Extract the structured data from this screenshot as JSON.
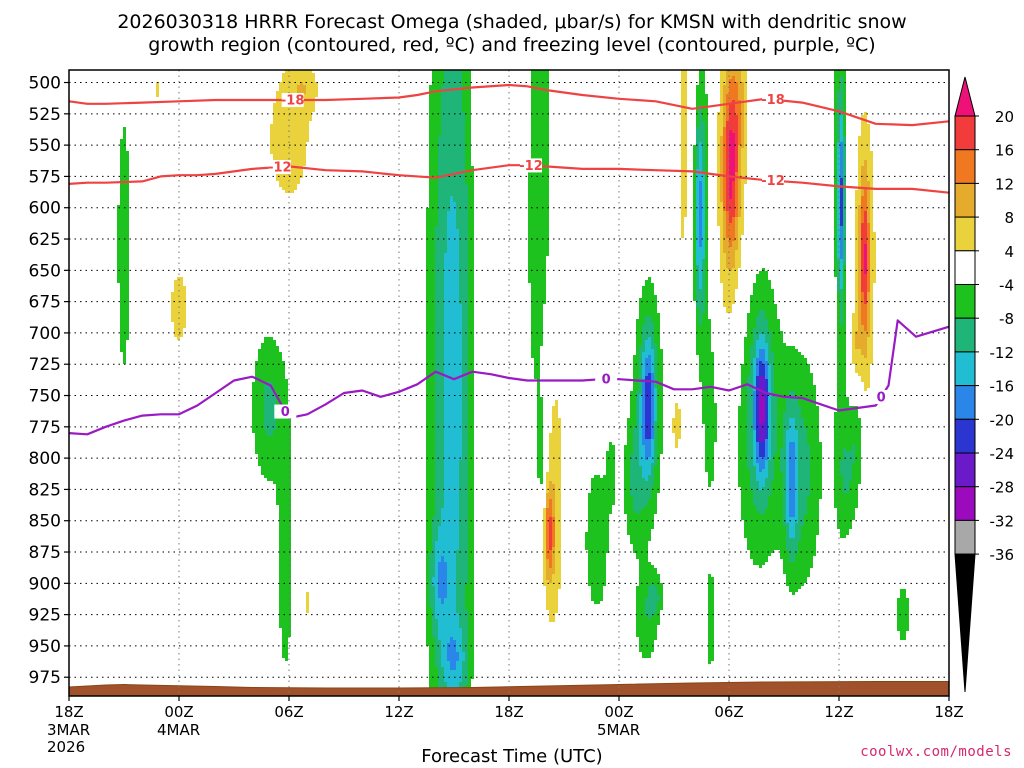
{
  "chart_data": {
    "type": "heatmap",
    "title_line1": "2026030318 HRRR Forecast Omega (shaded, μbar/s) for KMSN with dendritic snow",
    "title_line2": "growth region (contoured, red, ºC) and freezing level (contoured, purple, ºC)",
    "xlabel": "Forecast Time (UTC)",
    "credit": "coolwx.com/models",
    "x_range_hours": [
      0,
      48
    ],
    "x_ticks": [
      {
        "h": 0,
        "label": "18Z",
        "sub": [
          "3MAR",
          "2026"
        ]
      },
      {
        "h": 6,
        "label": "00Z",
        "sub": [
          "4MAR"
        ]
      },
      {
        "h": 12,
        "label": "06Z",
        "sub": []
      },
      {
        "h": 18,
        "label": "12Z",
        "sub": []
      },
      {
        "h": 24,
        "label": "18Z",
        "sub": []
      },
      {
        "h": 30,
        "label": "00Z",
        "sub": [
          "5MAR"
        ]
      },
      {
        "h": 36,
        "label": "06Z",
        "sub": []
      },
      {
        "h": 42,
        "label": "12Z",
        "sub": []
      },
      {
        "h": 48,
        "label": "18Z",
        "sub": []
      }
    ],
    "y_range_mb": [
      490,
      990
    ],
    "y_ticks": [
      500,
      525,
      550,
      575,
      600,
      625,
      650,
      675,
      700,
      725,
      750,
      775,
      800,
      825,
      850,
      875,
      900,
      925,
      950,
      975
    ],
    "colorbar": {
      "levels": [
        -36,
        -32,
        -28,
        -24,
        -20,
        -16,
        -12,
        -8,
        -4,
        4,
        8,
        12,
        16,
        20
      ],
      "labels": [
        "20",
        "16",
        "12",
        "8",
        "4",
        "-4",
        "-8",
        "-12",
        "-16",
        "-20",
        "-24",
        "-28",
        "-32",
        "-36"
      ],
      "colors_top_to_bottom": [
        "#ee1177",
        "#f23c3c",
        "#f07820",
        "#e5ab2c",
        "#e9d23c",
        "#ffffff",
        "#1ec21e",
        "#1fb578",
        "#21bdd2",
        "#2a86e8",
        "#2b35cf",
        "#6a1ac9",
        "#9b0bbd",
        "#a8a8a8",
        "#000000"
      ]
    },
    "omega_features": [
      {
        "t": 3.0,
        "p": 630,
        "dt": 0.3,
        "dp": 90,
        "v": -7
      },
      {
        "t": 6.0,
        "p": 680,
        "dt": 0.45,
        "dp": 28,
        "v": 6
      },
      {
        "t": 4.8,
        "p": 505,
        "dt": 0.08,
        "dp": 10,
        "v": 5
      },
      {
        "t": 10.9,
        "p": 760,
        "dt": 0.7,
        "dp": 45,
        "v": -9
      },
      {
        "t": 11.8,
        "p": 880,
        "dt": 0.3,
        "dp": 70,
        "v": -8
      },
      {
        "t": 12.0,
        "p": 545,
        "dt": 1.1,
        "dp": 48,
        "v": 6
      },
      {
        "t": 12.8,
        "p": 503,
        "dt": 0.6,
        "dp": 15,
        "v": 5
      },
      {
        "t": 13.0,
        "p": 915,
        "dt": 0.08,
        "dp": 12,
        "v": 5
      },
      {
        "t": 14.4,
        "p": 905,
        "dt": 0.06,
        "dp": 8,
        "v": -6
      },
      {
        "t": 15.4,
        "p": 935,
        "dt": 0.08,
        "dp": 14,
        "v": 5
      },
      {
        "t": 20.9,
        "p": 740,
        "dt": 0.9,
        "dp": 270,
        "v": -14
      },
      {
        "t": 21.0,
        "p": 960,
        "dt": 0.5,
        "dp": 20,
        "v": -7
      },
      {
        "t": 20.2,
        "p": 900,
        "dt": 0.4,
        "dp": 30,
        "v": -8
      },
      {
        "t": 22.4,
        "p": 745,
        "dt": 0.25,
        "dp": 240,
        "v": 6
      },
      {
        "t": 25.7,
        "p": 660,
        "dt": 0.55,
        "dp": 200,
        "v": -8
      },
      {
        "t": 25.8,
        "p": 805,
        "dt": 0.2,
        "dp": 40,
        "v": -6
      },
      {
        "t": 26.2,
        "p": 825,
        "dt": 0.6,
        "dp": 110,
        "v": 9
      },
      {
        "t": 26.2,
        "p": 860,
        "dt": 0.2,
        "dp": 25,
        "v": 13
      },
      {
        "t": 28.8,
        "p": 865,
        "dt": 0.55,
        "dp": 50,
        "v": -7
      },
      {
        "t": 29.6,
        "p": 810,
        "dt": 0.2,
        "dp": 20,
        "v": -6
      },
      {
        "t": 31.5,
        "p": 930,
        "dt": 0.5,
        "dp": 28,
        "v": -7
      },
      {
        "t": 32.0,
        "p": 910,
        "dt": 0.3,
        "dp": 12,
        "v": -6
      },
      {
        "t": 31.6,
        "p": 755,
        "dt": 0.55,
        "dp": 68,
        "v": -11
      },
      {
        "t": 31.6,
        "p": 758,
        "dt": 0.25,
        "dp": 35,
        "v": -13
      },
      {
        "t": 30.8,
        "p": 820,
        "dt": 0.45,
        "dp": 40,
        "v": -7
      },
      {
        "t": 33.1,
        "p": 775,
        "dt": 0.2,
        "dp": 20,
        "v": 5
      },
      {
        "t": 33.5,
        "p": 575,
        "dt": 0.35,
        "dp": 150,
        "v": 5
      },
      {
        "t": 34.0,
        "p": 565,
        "dt": 0.32,
        "dp": 135,
        "v": 5
      },
      {
        "t": 34.4,
        "p": 600,
        "dt": 0.55,
        "dp": 110,
        "v": -8
      },
      {
        "t": 34.4,
        "p": 605,
        "dt": 0.22,
        "dp": 60,
        "v": -12
      },
      {
        "t": 35.0,
        "p": 930,
        "dt": 0.2,
        "dp": 35,
        "v": -7
      },
      {
        "t": 35.0,
        "p": 770,
        "dt": 0.25,
        "dp": 45,
        "v": -7
      },
      {
        "t": 36.1,
        "p": 580,
        "dt": 0.7,
        "dp": 110,
        "v": 8
      },
      {
        "t": 36.1,
        "p": 570,
        "dt": 0.3,
        "dp": 45,
        "v": 14
      },
      {
        "t": 36.5,
        "p": 515,
        "dt": 0.35,
        "dp": 30,
        "v": 5
      },
      {
        "t": 37.6,
        "p": 765,
        "dt": 0.9,
        "dp": 85,
        "v": -11
      },
      {
        "t": 37.8,
        "p": 760,
        "dt": 0.28,
        "dp": 35,
        "v": -19
      },
      {
        "t": 40.0,
        "p": 810,
        "dt": 0.8,
        "dp": 70,
        "v": -9
      },
      {
        "t": 39.4,
        "p": 820,
        "dt": 0.25,
        "dp": 40,
        "v": -12
      },
      {
        "t": 42.1,
        "p": 600,
        "dt": 0.35,
        "dp": 160,
        "v": -8
      },
      {
        "t": 42.1,
        "p": 595,
        "dt": 0.12,
        "dp": 50,
        "v": -14
      },
      {
        "t": 42.6,
        "p": 815,
        "dt": 0.5,
        "dp": 35,
        "v": -7
      },
      {
        "t": 43.0,
        "p": 775,
        "dt": 0.25,
        "dp": 25,
        "v": -6
      },
      {
        "t": 43.4,
        "p": 640,
        "dt": 0.5,
        "dp": 100,
        "v": 7
      },
      {
        "t": 43.4,
        "p": 640,
        "dt": 0.18,
        "dp": 45,
        "v": 14
      },
      {
        "t": 41.8,
        "p": 700,
        "dt": 0.15,
        "dp": 30,
        "v": 5
      },
      {
        "t": 42.9,
        "p": 710,
        "dt": 0.2,
        "dp": 20,
        "v": 5
      },
      {
        "t": 45.5,
        "p": 925,
        "dt": 0.3,
        "dp": 20,
        "v": -7
      }
    ],
    "contour_minus18": {
      "label": "-18",
      "hours": [
        0,
        1,
        2,
        4,
        6,
        8,
        10,
        12,
        14,
        16,
        18,
        19,
        20,
        22,
        24,
        25,
        26,
        28,
        30,
        32,
        34,
        36,
        38,
        40,
        42,
        44,
        46,
        48
      ],
      "pressure": [
        515,
        517,
        517,
        516,
        515,
        514,
        514,
        514,
        514,
        513,
        512,
        510,
        507,
        504,
        502,
        503,
        506,
        510,
        513,
        515,
        521,
        517,
        513,
        516,
        523,
        533,
        534,
        531
      ]
    },
    "contour_minus12": {
      "label": "-12",
      "hours": [
        0,
        1,
        2,
        4,
        5,
        6,
        7,
        8,
        10,
        12,
        14,
        16,
        18,
        20,
        21,
        22,
        24,
        25,
        26,
        28,
        30,
        32,
        34,
        36,
        38,
        40,
        42,
        44,
        46,
        48
      ],
      "pressure": [
        581,
        580,
        580,
        579,
        575,
        574,
        574,
        573,
        569,
        567,
        570,
        571,
        574,
        576,
        573,
        570,
        566,
        566,
        567,
        569,
        569,
        570,
        571,
        575,
        578,
        580,
        583,
        585,
        585,
        588
      ],
      "label_hours": [
        11.5,
        25.2,
        38.4
      ]
    },
    "freezing_level": {
      "label": "0",
      "hours": [
        0,
        1,
        2,
        3,
        4,
        5,
        6,
        7,
        8,
        9,
        10,
        11,
        12,
        13,
        14,
        15,
        16,
        17,
        18,
        19,
        20,
        21,
        22,
        23,
        24,
        25,
        26,
        27,
        28,
        29,
        30,
        31,
        32,
        33,
        34,
        35,
        36,
        37,
        38,
        39,
        40,
        41,
        42,
        43,
        44,
        44.7,
        45.2,
        46.2,
        48
      ],
      "pressure": [
        780,
        781,
        775,
        770,
        766,
        765,
        765,
        758,
        748,
        738,
        735,
        742,
        768,
        765,
        757,
        748,
        746,
        751,
        747,
        741,
        731,
        737,
        731,
        733,
        736,
        738,
        738,
        738,
        738,
        737,
        737,
        738,
        739,
        745,
        745,
        743,
        746,
        741,
        748,
        751,
        752,
        757,
        762,
        760,
        758,
        742,
        690,
        703,
        695
      ],
      "label_hours": [
        11.8,
        29.3,
        44.3
      ]
    }
  }
}
